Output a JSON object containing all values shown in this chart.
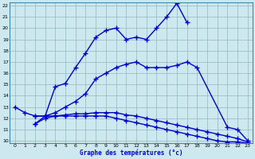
{
  "xlabel": "Graphe des températures (°c)",
  "xlim": [
    -0.5,
    23.5
  ],
  "ylim": [
    9.8,
    22.3
  ],
  "yticks": [
    10,
    11,
    12,
    13,
    14,
    15,
    16,
    17,
    18,
    19,
    20,
    21,
    22
  ],
  "xticks": [
    0,
    1,
    2,
    3,
    4,
    5,
    6,
    7,
    8,
    9,
    10,
    11,
    12,
    13,
    14,
    15,
    16,
    17,
    18,
    19,
    20,
    21,
    22,
    23
  ],
  "background_color": "#cde8ee",
  "line_color": "#0000cc",
  "line_width": 1.0,
  "marker": "+",
  "marker_size": 4,
  "series": [
    {
      "x": [
        0,
        1,
        2,
        3,
        4,
        5,
        6,
        7,
        8,
        9,
        10,
        11,
        12,
        13,
        14,
        15,
        16,
        17
      ],
      "y": [
        13.0,
        12.5,
        12.2,
        12.2,
        14.8,
        15.1,
        16.5,
        17.8,
        19.2,
        19.8,
        20.0,
        19.0,
        19.2,
        19.0,
        20.0,
        21.0,
        22.2,
        20.5
      ]
    },
    {
      "x": [
        2,
        3,
        4,
        5,
        6,
        7,
        8,
        9,
        10,
        11,
        12,
        13,
        14,
        15,
        16,
        17,
        18,
        21,
        22,
        23
      ],
      "y": [
        11.5,
        12.2,
        12.5,
        13.0,
        13.5,
        14.2,
        15.5,
        16.0,
        16.5,
        16.8,
        17.0,
        16.5,
        16.5,
        16.5,
        16.7,
        17.0,
        16.5,
        11.2,
        11.0,
        10.0
      ]
    },
    {
      "x": [
        2,
        3,
        4,
        5,
        6,
        7,
        8,
        9,
        10,
        11,
        12,
        13,
        14,
        15,
        16,
        17,
        18,
        19,
        20,
        21,
        22,
        23
      ],
      "y": [
        11.5,
        12.0,
        12.2,
        12.3,
        12.4,
        12.4,
        12.5,
        12.5,
        12.5,
        12.3,
        12.2,
        12.0,
        11.8,
        11.6,
        11.4,
        11.2,
        11.0,
        10.8,
        10.6,
        10.4,
        10.2,
        9.9
      ]
    },
    {
      "x": [
        2,
        3,
        4,
        5,
        6,
        7,
        8,
        9,
        10,
        11,
        12,
        13,
        14,
        15,
        16,
        17,
        18,
        19,
        20,
        21,
        22,
        23
      ],
      "y": [
        12.2,
        12.2,
        12.2,
        12.2,
        12.2,
        12.2,
        12.2,
        12.2,
        12.0,
        11.8,
        11.6,
        11.4,
        11.2,
        11.0,
        10.8,
        10.6,
        10.4,
        10.2,
        10.0,
        9.9,
        9.9,
        9.8
      ]
    }
  ],
  "grid_color": "#90b8c0",
  "grid_linewidth": 0.5
}
